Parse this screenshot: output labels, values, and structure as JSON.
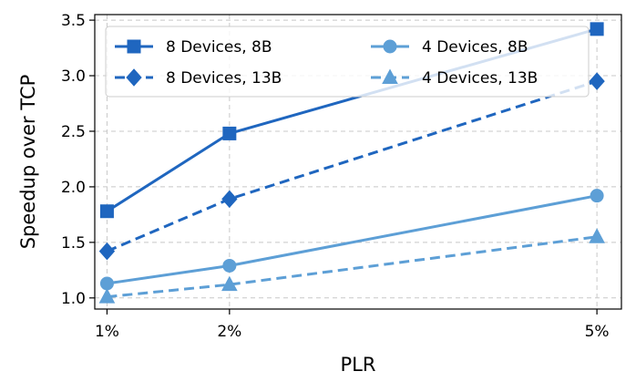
{
  "chart_data": {
    "type": "line",
    "xlabel": "PLR",
    "ylabel": "Speedup over TCP",
    "x_values": [
      1,
      2,
      5
    ],
    "x_tick_labels": [
      "1%",
      "2%",
      "5%"
    ],
    "xlim": [
      0.9,
      5.2
    ],
    "ylim": [
      0.9,
      3.55
    ],
    "y_ticks": [
      1.0,
      1.5,
      2.0,
      2.5,
      3.0,
      3.5
    ],
    "y_tick_labels": [
      "1.0",
      "1.5",
      "2.0",
      "2.5",
      "3.0",
      "3.5"
    ],
    "grid": true,
    "legend_position": "top-left",
    "series": [
      {
        "name": "8 Devices, 8B",
        "values": [
          1.78,
          2.48,
          3.42
        ],
        "color": "#1f66bf",
        "marker": "square",
        "dash": "solid"
      },
      {
        "name": "8 Devices, 13B",
        "values": [
          1.42,
          1.89,
          2.95
        ],
        "color": "#1f66bf",
        "marker": "diamond",
        "dash": "dashed"
      },
      {
        "name": "4 Devices, 8B",
        "values": [
          1.13,
          1.29,
          1.92
        ],
        "color": "#5d9fd6",
        "marker": "circle",
        "dash": "solid"
      },
      {
        "name": "4 Devices, 13B",
        "values": [
          1.01,
          1.12,
          1.55
        ],
        "color": "#5d9fd6",
        "marker": "triangle",
        "dash": "dashed"
      }
    ]
  }
}
